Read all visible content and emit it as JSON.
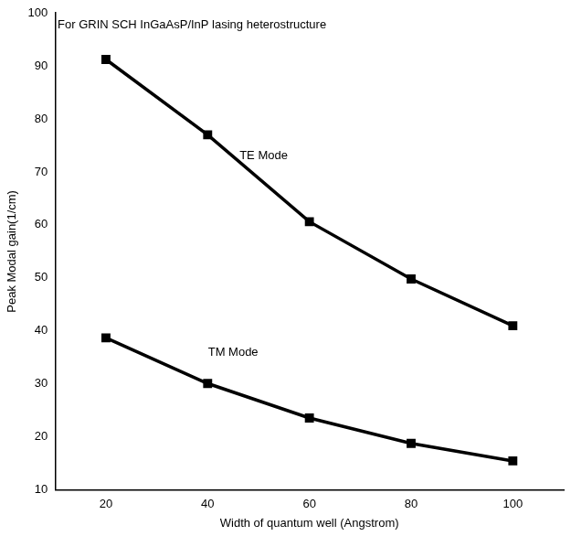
{
  "chart_data": {
    "type": "line",
    "x_label": "Width of quantum well (Angstrom)",
    "y_label": "Peak Modal gain(1/cm)",
    "x": [
      20,
      40,
      60,
      80,
      100
    ],
    "series": [
      {
        "name": "TE Mode",
        "color": "#000000",
        "marker": "square",
        "line_style": "solid",
        "values": [
          91.2,
          77.0,
          60.6,
          49.8,
          41.0
        ]
      },
      {
        "name": "TM Mode",
        "color": "#000000",
        "marker": "square",
        "line_style": "solid",
        "values": [
          38.7,
          30.1,
          23.6,
          18.8,
          15.5
        ]
      }
    ],
    "xlim": [
      10,
      110
    ],
    "xticks": [
      20,
      40,
      60,
      80,
      100
    ],
    "ylim": [
      10,
      100
    ],
    "yticks": [
      10,
      20,
      30,
      40,
      50,
      60,
      70,
      80,
      90,
      100
    ],
    "grid": false,
    "annotations": [
      {
        "text": "For GRIN SCH InGaAsP/InP lasing heterostructure",
        "x": 10.5,
        "y": 97.6,
        "align": "left"
      },
      {
        "text": "TE Mode",
        "x": 51,
        "y": 73,
        "align": "center"
      },
      {
        "text": "TM Mode",
        "x": 45,
        "y": 36,
        "align": "center"
      }
    ],
    "legend": false
  }
}
